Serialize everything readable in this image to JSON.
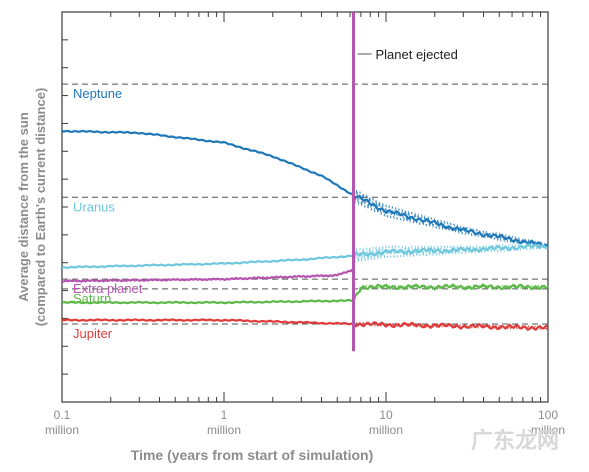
{
  "chart_data": {
    "type": "line",
    "xlabel": "Time (years from start of simulation)",
    "ylabel_line1": "Average distance from the sun",
    "ylabel_line2": "(compared to Earth's current distance)",
    "x_scale": "log",
    "xlim": [
      0.1,
      100
    ],
    "x_ticks": [
      {
        "value": 0.1,
        "label": "0.1",
        "sublabel": "million"
      },
      {
        "value": 1,
        "label": "1",
        "sublabel": "million"
      },
      {
        "value": 10,
        "label": "10",
        "sublabel": "million"
      },
      {
        "value": 100,
        "label": "100",
        "sublabel": "million"
      }
    ],
    "y_tick_labels_shown": false,
    "grid": false,
    "event": {
      "label": "Planet ejected",
      "x": 6.3,
      "color": "#b455b0"
    },
    "series": [
      {
        "name": "Neptune",
        "color": "#1f78b8",
        "initial_level": 0.185,
        "x": [
          0.1,
          0.3,
          1,
          2,
          4,
          6.3,
          10,
          30,
          100
        ],
        "y": [
          0.305,
          0.31,
          0.335,
          0.37,
          0.42,
          0.47,
          0.51,
          0.56,
          0.6
        ]
      },
      {
        "name": "Uranus",
        "color": "#6ec7dd",
        "initial_level": 0.475,
        "x": [
          0.1,
          1,
          3,
          6.3,
          10,
          30,
          100
        ],
        "y": [
          0.655,
          0.645,
          0.635,
          0.625,
          0.615,
          0.61,
          0.6
        ]
      },
      {
        "name": "Extra planet",
        "color": "#b455b0",
        "initial_level": 0.685,
        "x": [
          0.1,
          1,
          5,
          6.3
        ],
        "y": [
          0.69,
          0.685,
          0.675,
          0.66
        ]
      },
      {
        "name": "Saturn",
        "color": "#5db84a",
        "initial_level": 0.71,
        "x": [
          0.1,
          1,
          6.3,
          7,
          30,
          100
        ],
        "y": [
          0.745,
          0.745,
          0.74,
          0.705,
          0.705,
          0.705
        ]
      },
      {
        "name": "Jupiter",
        "color": "#e03a3a",
        "initial_level": 0.8,
        "x": [
          0.1,
          1,
          6.3,
          100
        ],
        "y": [
          0.79,
          0.79,
          0.8,
          0.81
        ]
      }
    ]
  },
  "watermark": "广东龙网"
}
